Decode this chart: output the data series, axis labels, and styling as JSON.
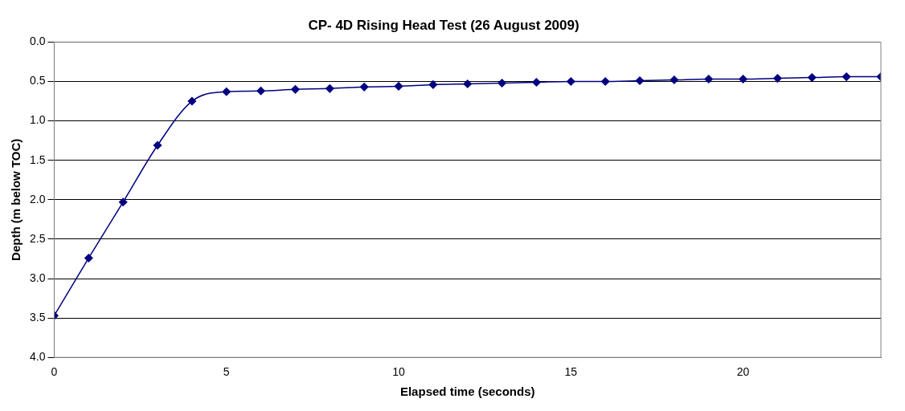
{
  "chart_data": {
    "type": "line",
    "title": "CP- 4D Rising Head Test (26 August 2009)",
    "xlabel": "Elapsed time (seconds)",
    "ylabel": "Depth (m below TOC)",
    "x": [
      0,
      1,
      2,
      3,
      4,
      5,
      6,
      7,
      8,
      9,
      10,
      11,
      12,
      13,
      14,
      15,
      16,
      17,
      18,
      19,
      20,
      21,
      22,
      23,
      24
    ],
    "series": [
      {
        "color": "#000080",
        "values": [
          3.47,
          2.74,
          2.03,
          1.31,
          0.75,
          0.63,
          0.62,
          0.6,
          0.59,
          0.57,
          0.56,
          0.54,
          0.53,
          0.52,
          0.51,
          0.5,
          0.5,
          0.49,
          0.48,
          0.47,
          0.47,
          0.46,
          0.45,
          0.44,
          0.44
        ]
      }
    ],
    "xlim": [
      0,
      24
    ],
    "xticks": [
      0,
      5,
      10,
      15,
      20
    ],
    "ylim": [
      4,
      0
    ],
    "yticks": [
      {
        "value": 0,
        "label": "0.0"
      },
      {
        "value": 0.5,
        "label": "0.5"
      },
      {
        "value": 1,
        "label": "1.0"
      },
      {
        "value": 1.5,
        "label": "1.5"
      },
      {
        "value": 2,
        "label": "2.0"
      },
      {
        "value": 2.5,
        "label": "2.5"
      },
      {
        "value": 3,
        "label": "3.0"
      },
      {
        "value": 3.5,
        "label": "3.5"
      },
      {
        "value": 4,
        "label": "4.0"
      }
    ],
    "grid": "y",
    "marker": "diamond",
    "line_style": "solid"
  }
}
